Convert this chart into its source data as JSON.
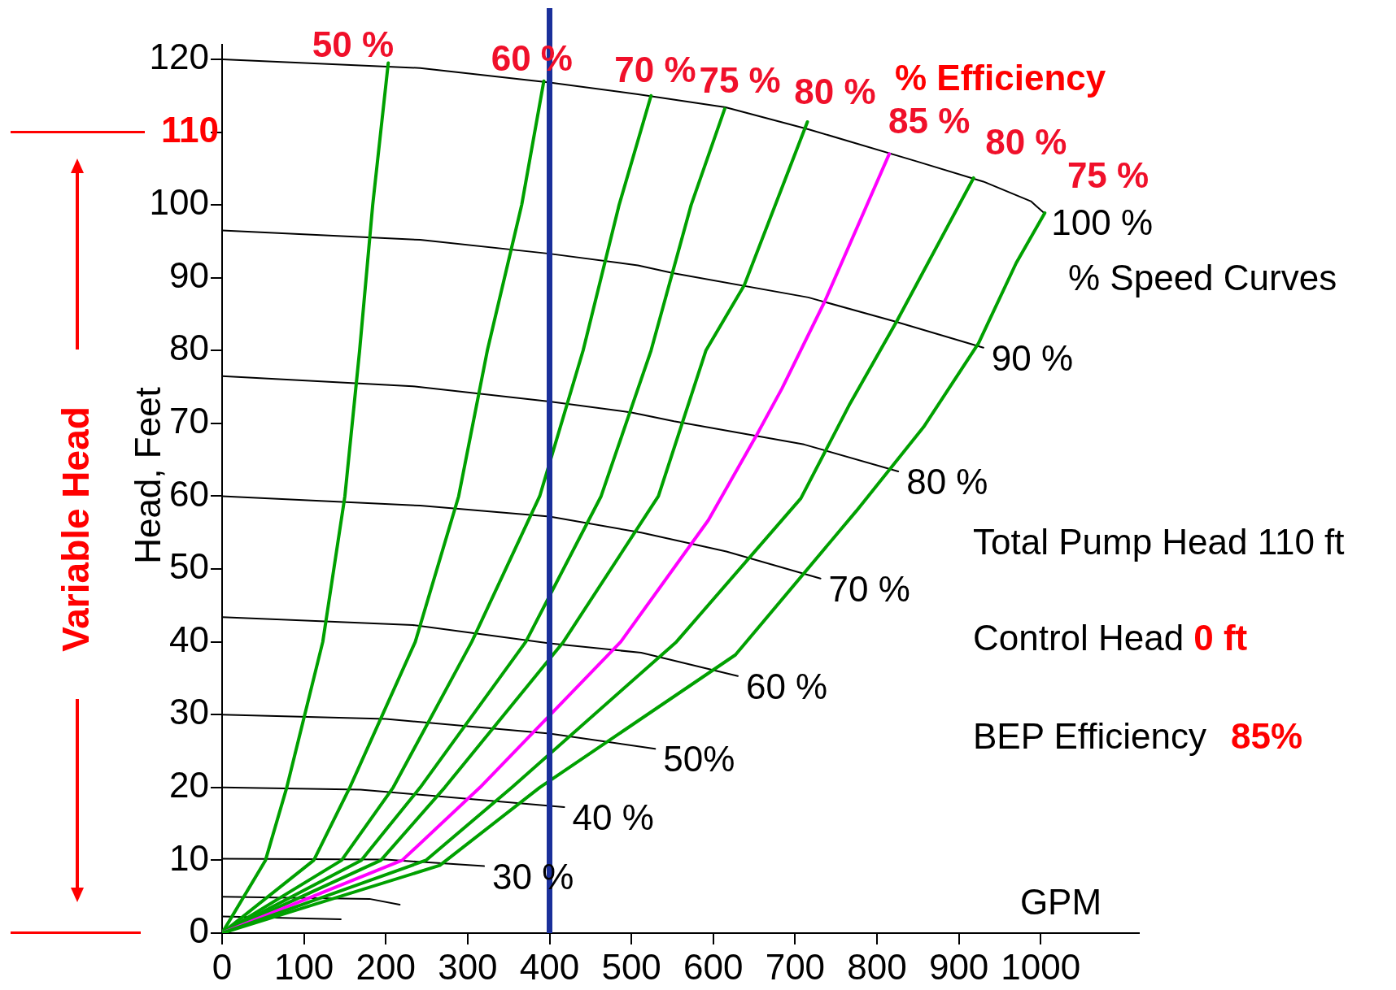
{
  "chart_data": {
    "type": "line",
    "xlabel": "GPM",
    "ylabel": "Head, Feet",
    "xlim": [
      0,
      1120
    ],
    "ylim": [
      0,
      122
    ],
    "xticks": [
      0,
      100,
      200,
      300,
      400,
      500,
      600,
      700,
      800,
      900,
      1000
    ],
    "yticks": [
      0,
      10,
      20,
      30,
      40,
      50,
      60,
      70,
      80,
      90,
      100,
      {
        "value": 110,
        "label": null
      },
      120
    ],
    "grid": false,
    "legend": false,
    "ref_lines": [
      {
        "axis": "x",
        "value": 400,
        "color": "#1a2f9a"
      },
      {
        "axis": "y",
        "value": 110,
        "label": "110",
        "color": "#ff0000"
      }
    ],
    "annotations": [
      "Total Pump Head 110 ft",
      "Control Head",
      "0 ft",
      "BEP Efficiency",
      "85%",
      "Variable Head",
      "%  Efficiency",
      "% Speed Curves"
    ],
    "series": [
      {
        "name": "100 %",
        "color": "#000000",
        "x": [
          0,
          242,
          400,
          508,
          615,
          716,
          848,
          930,
          988,
          1003
        ],
        "values": [
          120,
          118.8,
          116.8,
          115.2,
          113.4,
          110.4,
          106,
          103.2,
          100.5,
          99
        ]
      },
      {
        "name": "90 %",
        "color": "#000000",
        "x": [
          0,
          242,
          400,
          508,
          552,
          716,
          822,
          930
        ],
        "values": [
          96.5,
          95.2,
          93.3,
          91.7,
          90.6,
          87.3,
          84,
          80.4
        ]
      },
      {
        "name": "80 %",
        "color": "#000000",
        "x": [
          0,
          233,
          400,
          500,
          552,
          711,
          826
        ],
        "values": [
          76.5,
          75.1,
          73,
          71.5,
          70.3,
          67.1,
          63.4
        ]
      },
      {
        "name": "70 %",
        "color": "#000000",
        "x": [
          0,
          242,
          400,
          512,
          616,
          731
        ],
        "values": [
          60,
          58.7,
          57.2,
          55,
          52.4,
          48.7
        ]
      },
      {
        "name": "60 %",
        "color": "#000000",
        "x": [
          0,
          233,
          400,
          512,
          630
        ],
        "values": [
          43.4,
          42.3,
          39.8,
          38.5,
          35.3
        ]
      },
      {
        "name": "50%",
        "color": "#000000",
        "x": [
          0,
          200,
          400,
          529
        ],
        "values": [
          30,
          29.4,
          27.4,
          25.3
        ]
      },
      {
        "name": "40 %",
        "color": "#000000",
        "x": [
          0,
          169,
          418
        ],
        "values": [
          20,
          19.7,
          17.3
        ]
      },
      {
        "name": "30 %",
        "color": "#000000",
        "x": [
          0,
          200,
          320
        ],
        "values": [
          10.2,
          10.1,
          9.2
        ]
      },
      {
        "color": "#000000",
        "x": [
          0,
          180,
          217
        ],
        "values": [
          5,
          4.7,
          3.9
        ]
      },
      {
        "color": "#000000",
        "x": [
          0,
          145
        ],
        "values": [
          2.3,
          1.9
        ]
      },
      {
        "name": "50 %",
        "color": "#00a000",
        "x": [
          0,
          53,
          79,
          123,
          150,
          168,
          184,
          203
        ],
        "values": [
          0,
          10,
          20,
          40,
          60,
          80,
          100,
          119.5
        ]
      },
      {
        "name": "60 %",
        "color": "#00a000",
        "x": [
          0,
          112,
          156,
          236,
          289,
          324,
          366,
          393
        ],
        "values": [
          0,
          10,
          20,
          40,
          60,
          80,
          100,
          117
        ]
      },
      {
        "name": "70 %",
        "color": "#00a000",
        "x": [
          0,
          146,
          209,
          305,
          388,
          441,
          485,
          524
        ],
        "values": [
          0,
          10,
          20,
          40,
          60,
          80,
          100,
          115
        ]
      },
      {
        "name": "75 %",
        "color": "#00a000",
        "x": [
          0,
          170,
          242,
          371,
          463,
          524,
          573,
          614
        ],
        "values": [
          0,
          10,
          20,
          40,
          60,
          80,
          100,
          113.2
        ]
      },
      {
        "name": "80 %",
        "color": "#00a000",
        "x": [
          0,
          194,
          272,
          417,
          533,
          591,
          638,
          715
        ],
        "values": [
          0,
          10,
          20,
          40,
          60,
          80,
          89,
          111.4
        ]
      },
      {
        "name": "85 %",
        "color": "#ff00ff",
        "x": [
          0,
          220,
          315,
          487,
          594,
          653,
          684,
          736,
          815
        ],
        "values": [
          0,
          10,
          20,
          40,
          56.7,
          68.4,
          74.8,
          86.7,
          107
        ]
      },
      {
        "name": "80 %",
        "color": "#00a000",
        "x": [
          0,
          249,
          354,
          555,
          707,
          767,
          824,
          918
        ],
        "values": [
          0,
          10,
          20,
          40,
          59.7,
          72.7,
          84,
          103.7
        ]
      },
      {
        "name": "75 %",
        "color": "#00a000",
        "x": [
          0,
          266,
          388,
          627,
          775,
          857,
          924,
          970,
          1005
        ],
        "values": [
          0,
          9.3,
          20,
          38.2,
          58,
          69.5,
          81,
          92,
          98.9
        ]
      }
    ]
  }
}
